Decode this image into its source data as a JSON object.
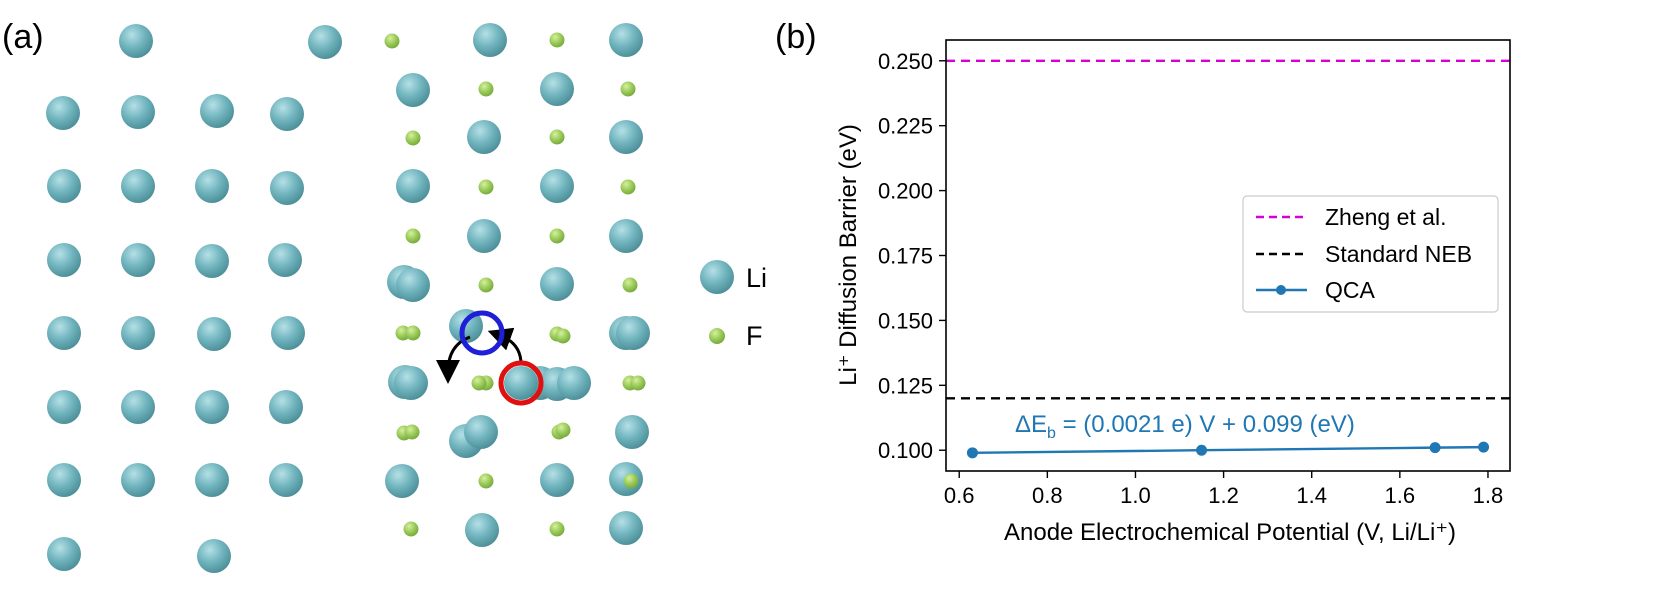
{
  "panel_a": {
    "label": "(a)",
    "legend": [
      {
        "name": "Li",
        "color": "#6fb3bd"
      },
      {
        "name": "F",
        "color": "#9acb5a"
      }
    ]
  },
  "panel_b": {
    "label": "(b)"
  },
  "chart_data": {
    "type": "line",
    "xlabel": "Anode Electrochemical Potential (V, Li/Li⁺)",
    "ylabel": "Li⁺ Diffusion Barrier (eV)",
    "xlim": [
      0.57,
      1.85
    ],
    "ylim": [
      0.092,
      0.258
    ],
    "xticks": [
      "0.6",
      "0.8",
      "1.0",
      "1.2",
      "1.4",
      "1.6",
      "1.8"
    ],
    "yticks": [
      "0.100",
      "0.125",
      "0.150",
      "0.175",
      "0.200",
      "0.225",
      "0.250"
    ],
    "series": [
      {
        "name": "Zheng et al.",
        "kind": "hline",
        "y": 0.25,
        "color": "#d400d4",
        "dash": true
      },
      {
        "name": "Standard NEB",
        "kind": "hline",
        "y": 0.12,
        "color": "#000000",
        "dash": true
      },
      {
        "name": "QCA",
        "kind": "line",
        "x": [
          0.63,
          1.15,
          1.68,
          1.79
        ],
        "y": [
          0.099,
          0.1,
          0.101,
          0.1012
        ],
        "color": "#1f77b4",
        "markers": true
      }
    ],
    "annotation": "ΔE_b = (0.0021 e) V + 0.099 (eV)",
    "legend_position": "center-right",
    "grid": false
  }
}
